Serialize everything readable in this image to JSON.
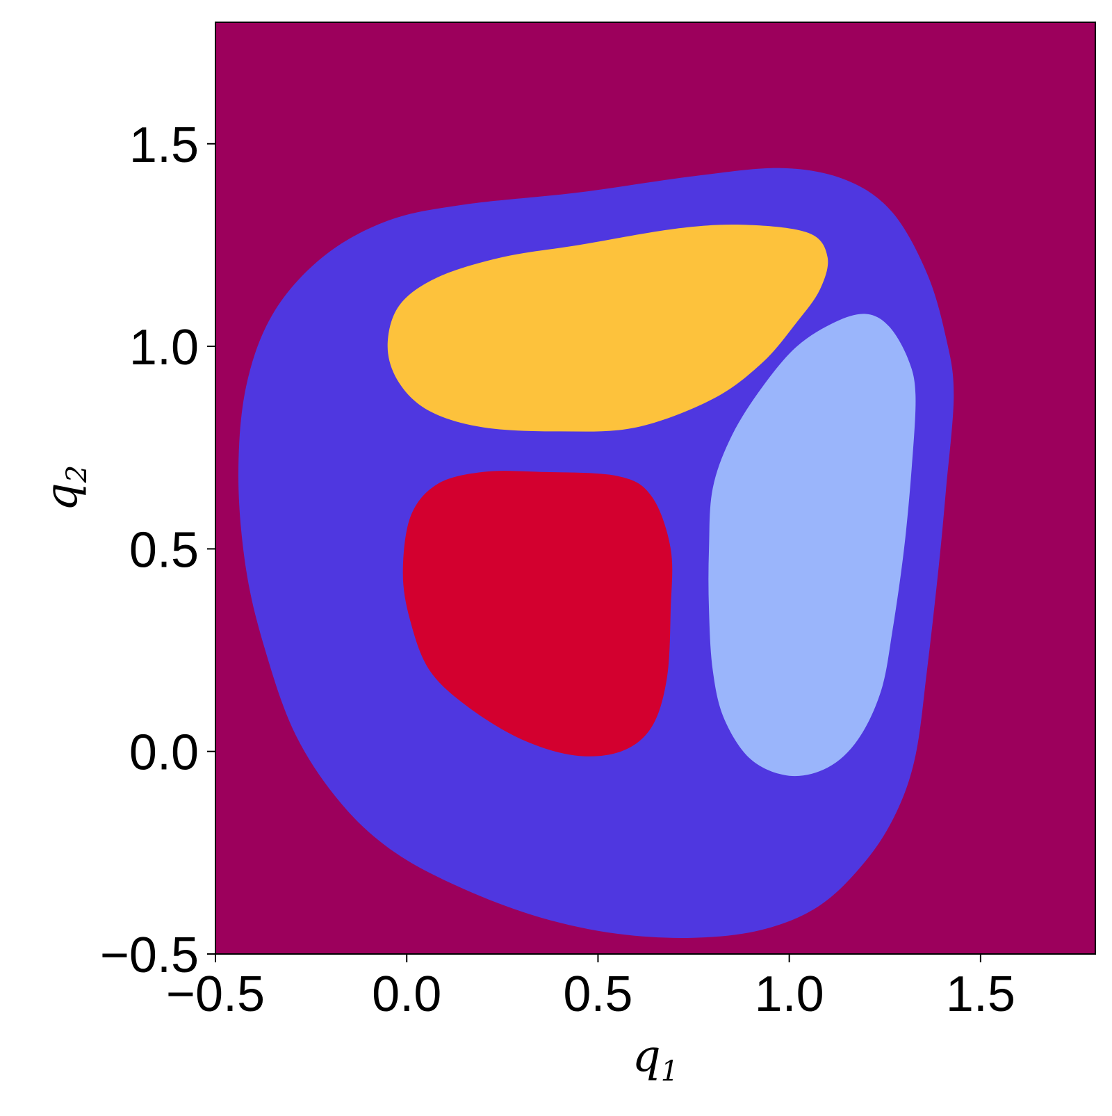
{
  "chart_data": {
    "type": "heatmap",
    "title": "",
    "xlabel": {
      "base": "q",
      "sub": "1"
    },
    "ylabel": {
      "base": "q",
      "sub": "2"
    },
    "xlim": [
      -0.5,
      1.8
    ],
    "ylim": [
      -0.5,
      1.8
    ],
    "x_ticks": [
      -0.5,
      0.0,
      0.5,
      1.0,
      1.5
    ],
    "y_ticks": [
      -0.5,
      0.0,
      0.5,
      1.0,
      1.5
    ],
    "x_tick_labels": [
      "−0.5",
      "0.0",
      "0.5",
      "1.0",
      "1.5"
    ],
    "y_tick_labels": [
      "−0.5",
      "0.0",
      "0.5",
      "1.0",
      "1.5"
    ],
    "grid": false,
    "legend": "none",
    "background_color": "#9c005c",
    "regions": [
      {
        "color": "#4f37e0",
        "boundary": [
          [
            0.98,
            1.44
          ],
          [
            1.15,
            1.41
          ],
          [
            1.27,
            1.33
          ],
          [
            1.36,
            1.18
          ],
          [
            1.41,
            1.02
          ],
          [
            1.43,
            0.88
          ],
          [
            1.41,
            0.65
          ],
          [
            1.39,
            0.45
          ],
          [
            1.36,
            0.2
          ],
          [
            1.33,
            -0.01
          ],
          [
            1.28,
            -0.15
          ],
          [
            1.2,
            -0.27
          ],
          [
            1.08,
            -0.38
          ],
          [
            0.93,
            -0.44
          ],
          [
            0.75,
            -0.46
          ],
          [
            0.55,
            -0.45
          ],
          [
            0.35,
            -0.41
          ],
          [
            0.15,
            -0.34
          ],
          [
            -0.03,
            -0.25
          ],
          [
            -0.17,
            -0.13
          ],
          [
            -0.29,
            0.04
          ],
          [
            -0.37,
            0.25
          ],
          [
            -0.42,
            0.45
          ],
          [
            -0.44,
            0.68
          ],
          [
            -0.42,
            0.9
          ],
          [
            -0.35,
            1.08
          ],
          [
            -0.22,
            1.22
          ],
          [
            -0.05,
            1.31
          ],
          [
            0.15,
            1.35
          ],
          [
            0.45,
            1.38
          ],
          [
            0.75,
            1.42
          ]
        ]
      },
      {
        "color": "#fdc23c",
        "boundary": [
          [
            0.88,
            1.3
          ],
          [
            1.05,
            1.28
          ],
          [
            1.1,
            1.22
          ],
          [
            1.08,
            1.14
          ],
          [
            1.02,
            1.06
          ],
          [
            0.93,
            0.96
          ],
          [
            0.8,
            0.87
          ],
          [
            0.6,
            0.8
          ],
          [
            0.4,
            0.79
          ],
          [
            0.2,
            0.8
          ],
          [
            0.06,
            0.84
          ],
          [
            -0.02,
            0.91
          ],
          [
            -0.05,
            1.0
          ],
          [
            -0.02,
            1.1
          ],
          [
            0.08,
            1.17
          ],
          [
            0.25,
            1.22
          ],
          [
            0.45,
            1.25
          ],
          [
            0.7,
            1.29
          ]
        ]
      },
      {
        "color": "#d3002f",
        "boundary": [
          [
            0.35,
            0.69
          ],
          [
            0.55,
            0.68
          ],
          [
            0.64,
            0.63
          ],
          [
            0.69,
            0.5
          ],
          [
            0.69,
            0.35
          ],
          [
            0.68,
            0.18
          ],
          [
            0.64,
            0.06
          ],
          [
            0.56,
            0.0
          ],
          [
            0.44,
            -0.01
          ],
          [
            0.3,
            0.03
          ],
          [
            0.16,
            0.11
          ],
          [
            0.06,
            0.2
          ],
          [
            0.01,
            0.32
          ],
          [
            -0.01,
            0.44
          ],
          [
            0.01,
            0.58
          ],
          [
            0.08,
            0.66
          ],
          [
            0.2,
            0.69
          ]
        ]
      },
      {
        "color": "#9ab5fb",
        "boundary": [
          [
            1.2,
            1.08
          ],
          [
            1.26,
            1.05
          ],
          [
            1.31,
            0.97
          ],
          [
            1.33,
            0.88
          ],
          [
            1.32,
            0.7
          ],
          [
            1.3,
            0.5
          ],
          [
            1.27,
            0.3
          ],
          [
            1.24,
            0.15
          ],
          [
            1.18,
            0.03
          ],
          [
            1.1,
            -0.04
          ],
          [
            1.0,
            -0.06
          ],
          [
            0.9,
            -0.02
          ],
          [
            0.83,
            0.08
          ],
          [
            0.8,
            0.2
          ],
          [
            0.79,
            0.35
          ],
          [
            0.79,
            0.5
          ],
          [
            0.8,
            0.65
          ],
          [
            0.85,
            0.78
          ],
          [
            0.93,
            0.9
          ],
          [
            1.02,
            1.0
          ],
          [
            1.12,
            1.06
          ]
        ]
      }
    ]
  }
}
